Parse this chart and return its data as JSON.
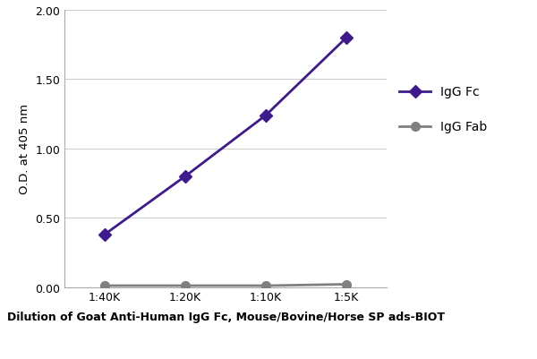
{
  "x_labels": [
    "1:40K",
    "1:20K",
    "1:10K",
    "1:5K"
  ],
  "x_values": [
    1,
    2,
    3,
    4
  ],
  "igg_fc_values": [
    0.38,
    0.8,
    1.24,
    1.8
  ],
  "igg_fab_values": [
    0.01,
    0.01,
    0.01,
    0.02
  ],
  "igg_fc_color": "#3d1a8e",
  "igg_fab_color": "#808080",
  "igg_fc_label": "IgG Fc",
  "igg_fab_label": "IgG Fab",
  "ylabel": "O.D. at 405 nm",
  "xlabel": "Dilution of Goat Anti-Human IgG Fc, Mouse/Bovine/Horse SP ads-BIOT",
  "ylim": [
    0.0,
    2.0
  ],
  "yticks": [
    0.0,
    0.5,
    1.0,
    1.5,
    2.0
  ],
  "background_color": "#ffffff",
  "grid_color": "#cccccc",
  "line_width": 2.0,
  "marker_size": 7
}
